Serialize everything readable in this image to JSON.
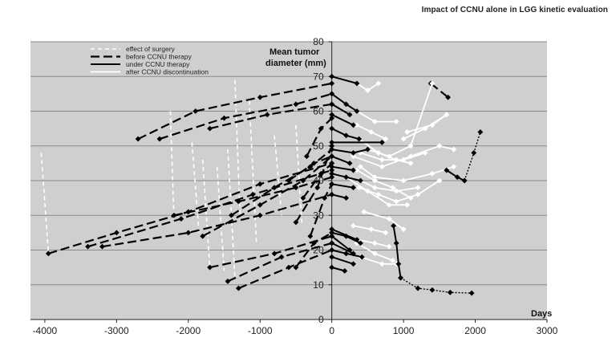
{
  "page": {
    "title": "Impact of CCNU alone in LGG kinetic evaluation"
  },
  "chart_data": {
    "type": "line",
    "title": "Impact of CCNU alone in LGG kinetic evaluation",
    "ylabel_line1": "Mean tumor",
    "ylabel_line2": "diameter (mm)",
    "xlabel": "Days",
    "xlim": [
      -4200,
      3000
    ],
    "ylim": [
      0,
      80
    ],
    "x_ticks": [
      -4000,
      -3000,
      -2000,
      -1000,
      0,
      1000,
      2000,
      3000
    ],
    "y_ticks": [
      0,
      10,
      20,
      30,
      40,
      50,
      60,
      70,
      80
    ],
    "grid": true,
    "legend_position": "top-left",
    "colors": {
      "plot_background": "#cfcfcf",
      "grid": "#8a8a8a",
      "surgery": "#ffffff",
      "before": "#000000",
      "under": "#000000",
      "after": "#ffffff"
    },
    "legend": [
      {
        "label": "effect of surgery",
        "style": "surgery"
      },
      {
        "label": "before CCNU therapy",
        "style": "before"
      },
      {
        "label": "under CCNU therapy",
        "style": "under"
      },
      {
        "label": "after CCNU discontinuation",
        "style": "after"
      }
    ],
    "series": [
      {
        "style": "surgery",
        "points": [
          [
            -4050,
            48
          ],
          [
            -3950,
            19
          ]
        ]
      },
      {
        "style": "surgery",
        "points": [
          [
            -2250,
            60
          ],
          [
            -2200,
            29
          ]
        ]
      },
      {
        "style": "surgery",
        "points": [
          [
            -1950,
            51
          ],
          [
            -1850,
            25
          ]
        ]
      },
      {
        "style": "surgery",
        "points": [
          [
            -1800,
            46
          ],
          [
            -1700,
            15
          ]
        ]
      },
      {
        "style": "surgery",
        "points": [
          [
            -1600,
            44
          ],
          [
            -1500,
            14
          ]
        ]
      },
      {
        "style": "surgery",
        "points": [
          [
            -1450,
            49
          ],
          [
            -1350,
            12
          ]
        ]
      },
      {
        "style": "surgery",
        "points": [
          [
            -1350,
            69
          ],
          [
            -1280,
            30
          ]
        ]
      },
      {
        "style": "surgery",
        "points": [
          [
            -1150,
            63
          ],
          [
            -1050,
            22
          ]
        ]
      },
      {
        "style": "surgery",
        "points": [
          [
            -800,
            53
          ],
          [
            -700,
            30
          ]
        ]
      },
      {
        "style": "surgery",
        "points": [
          [
            -500,
            56
          ],
          [
            -420,
            28
          ]
        ]
      },
      {
        "style": "before",
        "points": [
          [
            -2700,
            52
          ],
          [
            -1900,
            60
          ],
          [
            -1000,
            64
          ],
          [
            0,
            68
          ]
        ]
      },
      {
        "style": "before",
        "points": [
          [
            -2400,
            52
          ],
          [
            -1500,
            58
          ],
          [
            -500,
            62
          ],
          [
            0,
            65
          ]
        ]
      },
      {
        "style": "before",
        "points": [
          [
            -1700,
            55
          ],
          [
            -900,
            59
          ],
          [
            0,
            62
          ]
        ]
      },
      {
        "style": "before",
        "points": [
          [
            -3950,
            19
          ],
          [
            -3000,
            25
          ],
          [
            -2000,
            31
          ],
          [
            -1000,
            39
          ],
          [
            0,
            45
          ]
        ]
      },
      {
        "style": "before",
        "points": [
          [
            -3400,
            21
          ],
          [
            -2100,
            29
          ],
          [
            -1100,
            36
          ],
          [
            0,
            43
          ]
        ]
      },
      {
        "style": "before",
        "points": [
          [
            -3200,
            21
          ],
          [
            -2000,
            25
          ],
          [
            -1000,
            30
          ],
          [
            0,
            36
          ]
        ]
      },
      {
        "style": "before",
        "points": [
          [
            -2200,
            30
          ],
          [
            -1300,
            34
          ],
          [
            -500,
            38
          ],
          [
            0,
            41
          ]
        ]
      },
      {
        "style": "before",
        "points": [
          [
            -1800,
            24
          ],
          [
            -1000,
            33
          ],
          [
            -400,
            40
          ],
          [
            0,
            47
          ]
        ]
      },
      {
        "style": "before",
        "points": [
          [
            -1700,
            15
          ],
          [
            -800,
            19
          ],
          [
            0,
            24
          ]
        ]
      },
      {
        "style": "before",
        "points": [
          [
            -1450,
            11
          ],
          [
            -700,
            18
          ],
          [
            0,
            22
          ]
        ]
      },
      {
        "style": "before",
        "points": [
          [
            -1300,
            9
          ],
          [
            -600,
            15
          ],
          [
            0,
            20
          ]
        ]
      },
      {
        "style": "before",
        "points": [
          [
            -1400,
            30
          ],
          [
            -800,
            38
          ],
          [
            -300,
            44
          ],
          [
            0,
            49
          ]
        ]
      },
      {
        "style": "before",
        "points": [
          [
            -500,
            28
          ],
          [
            -200,
            38
          ],
          [
            0,
            50
          ]
        ]
      },
      {
        "style": "before",
        "points": [
          [
            -400,
            35
          ],
          [
            -150,
            42
          ],
          [
            0,
            45
          ]
        ]
      },
      {
        "style": "before",
        "points": [
          [
            -300,
            24
          ],
          [
            -100,
            35
          ],
          [
            0,
            39
          ]
        ]
      },
      {
        "style": "before",
        "points": [
          [
            -500,
            15
          ],
          [
            -250,
            22
          ],
          [
            0,
            25
          ]
        ]
      },
      {
        "style": "before",
        "points": [
          [
            -350,
            47
          ],
          [
            -150,
            55
          ],
          [
            0,
            58
          ]
        ]
      },
      {
        "style": "before",
        "points": [
          [
            -600,
            40
          ],
          [
            -250,
            45
          ],
          [
            0,
            47
          ]
        ]
      },
      {
        "style": "before",
        "points": [
          [
            1380,
            68
          ],
          [
            1620,
            64
          ]
        ]
      },
      {
        "style": "under",
        "points": [
          [
            0,
            70
          ],
          [
            350,
            68
          ]
        ]
      },
      {
        "style": "under",
        "points": [
          [
            0,
            65
          ],
          [
            200,
            62
          ],
          [
            350,
            60
          ]
        ]
      },
      {
        "style": "under",
        "points": [
          [
            0,
            62
          ],
          [
            250,
            59
          ]
        ]
      },
      {
        "style": "under",
        "points": [
          [
            0,
            59
          ],
          [
            300,
            56
          ]
        ]
      },
      {
        "style": "under",
        "points": [
          [
            0,
            55
          ],
          [
            200,
            53
          ],
          [
            380,
            52
          ]
        ]
      },
      {
        "style": "under",
        "points": [
          [
            0,
            51
          ],
          [
            700,
            51
          ]
        ]
      },
      {
        "style": "under",
        "points": [
          [
            0,
            49
          ],
          [
            300,
            48
          ],
          [
            500,
            49
          ]
        ]
      },
      {
        "style": "under",
        "points": [
          [
            0,
            47
          ],
          [
            250,
            45
          ]
        ]
      },
      {
        "style": "under",
        "points": [
          [
            0,
            44
          ],
          [
            300,
            43
          ]
        ]
      },
      {
        "style": "under",
        "points": [
          [
            0,
            42
          ],
          [
            200,
            41
          ],
          [
            400,
            40
          ]
        ]
      },
      {
        "style": "under",
        "points": [
          [
            0,
            39
          ],
          [
            300,
            38
          ]
        ]
      },
      {
        "style": "under",
        "points": [
          [
            0,
            36
          ],
          [
            200,
            35
          ]
        ]
      },
      {
        "style": "under",
        "points": [
          [
            0,
            26
          ],
          [
            350,
            23
          ]
        ]
      },
      {
        "style": "under",
        "points": [
          [
            0,
            25
          ],
          [
            200,
            24
          ],
          [
            400,
            22
          ]
        ]
      },
      {
        "style": "under",
        "points": [
          [
            0,
            24
          ],
          [
            250,
            20
          ]
        ]
      },
      {
        "style": "under",
        "points": [
          [
            0,
            22
          ],
          [
            300,
            19
          ]
        ]
      },
      {
        "style": "under",
        "points": [
          [
            0,
            20
          ],
          [
            200,
            19
          ],
          [
            420,
            18
          ]
        ]
      },
      {
        "style": "under",
        "points": [
          [
            0,
            18
          ],
          [
            300,
            16
          ]
        ]
      },
      {
        "style": "under",
        "points": [
          [
            0,
            15
          ],
          [
            180,
            14
          ]
        ]
      },
      {
        "style": "under",
        "points": [
          [
            860,
            27
          ],
          [
            900,
            22
          ],
          [
            930,
            16
          ],
          [
            960,
            12
          ]
        ]
      },
      {
        "style": "under",
        "points": [
          [
            1600,
            43
          ],
          [
            1750,
            41
          ],
          [
            1850,
            40
          ]
        ]
      },
      {
        "style": "after",
        "points": [
          [
            350,
            68
          ],
          [
            500,
            66
          ],
          [
            650,
            68
          ]
        ]
      },
      {
        "style": "after",
        "points": [
          [
            350,
            60
          ],
          [
            600,
            57
          ],
          [
            900,
            57
          ]
        ]
      },
      {
        "style": "after",
        "points": [
          [
            350,
            56
          ],
          [
            550,
            54
          ],
          [
            750,
            52
          ]
        ]
      },
      {
        "style": "after",
        "points": [
          [
            380,
            52
          ],
          [
            650,
            48
          ],
          [
            900,
            46
          ],
          [
            1100,
            45
          ]
        ]
      },
      {
        "style": "after",
        "points": [
          [
            400,
            48
          ],
          [
            700,
            46
          ],
          [
            1000,
            46
          ],
          [
            1300,
            48
          ]
        ]
      },
      {
        "style": "after",
        "points": [
          [
            500,
            49
          ],
          [
            800,
            47
          ],
          [
            1100,
            50
          ],
          [
            1400,
            68
          ]
        ]
      },
      {
        "style": "after",
        "points": [
          [
            400,
            40
          ],
          [
            600,
            38
          ],
          [
            900,
            37
          ],
          [
            1200,
            38
          ]
        ]
      },
      {
        "style": "after",
        "points": [
          [
            350,
            43
          ],
          [
            600,
            40
          ],
          [
            850,
            38
          ],
          [
            1100,
            35
          ]
        ]
      },
      {
        "style": "after",
        "points": [
          [
            380,
            38
          ],
          [
            650,
            36
          ],
          [
            900,
            34
          ],
          [
            1200,
            36
          ],
          [
            1500,
            40
          ]
        ]
      },
      {
        "style": "after",
        "points": [
          [
            400,
            44
          ],
          [
            600,
            41
          ],
          [
            1000,
            40
          ],
          [
            1400,
            42
          ],
          [
            1700,
            44
          ]
        ]
      },
      {
        "style": "after",
        "points": [
          [
            300,
            47
          ],
          [
            700,
            44
          ],
          [
            1100,
            47
          ],
          [
            1500,
            50
          ],
          [
            1700,
            49
          ]
        ]
      },
      {
        "style": "after",
        "points": [
          [
            200,
            41
          ],
          [
            500,
            37
          ],
          [
            800,
            33
          ],
          [
            1050,
            33
          ]
        ]
      },
      {
        "style": "after",
        "points": [
          [
            450,
            31
          ],
          [
            800,
            29
          ],
          [
            1000,
            26
          ]
        ]
      },
      {
        "style": "after",
        "points": [
          [
            350,
            22
          ],
          [
            600,
            19
          ],
          [
            850,
            17
          ]
        ]
      },
      {
        "style": "after",
        "points": [
          [
            400,
            18
          ],
          [
            700,
            16
          ],
          [
            900,
            16
          ]
        ]
      },
      {
        "style": "after",
        "points": [
          [
            350,
            23
          ],
          [
            600,
            22
          ],
          [
            800,
            21
          ]
        ]
      },
      {
        "style": "after",
        "points": [
          [
            300,
            27
          ],
          [
            550,
            26
          ],
          [
            750,
            25
          ]
        ]
      },
      {
        "style": "after",
        "points": [
          [
            1000,
            52
          ],
          [
            1300,
            55
          ],
          [
            1600,
            59
          ]
        ]
      },
      {
        "style": "after",
        "points": [
          [
            1050,
            54
          ],
          [
            1400,
            56
          ],
          [
            1600,
            59
          ]
        ]
      },
      {
        "style": "tail",
        "points": [
          [
            960,
            12
          ],
          [
            1200,
            9
          ],
          [
            1400,
            8.5
          ],
          [
            1650,
            7.8
          ],
          [
            1950,
            7.6
          ]
        ]
      },
      {
        "style": "tail",
        "points": [
          [
            1850,
            40
          ],
          [
            1980,
            48
          ],
          [
            2070,
            54
          ]
        ]
      }
    ]
  }
}
